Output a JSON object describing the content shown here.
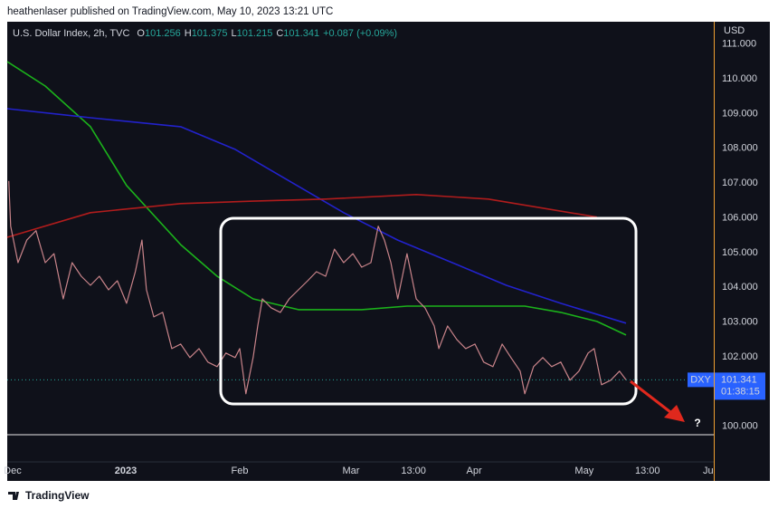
{
  "header": "heathenlaser published on TradingView.com, May 10, 2023 13:21 UTC",
  "footer": "TradingView",
  "chart_data": {
    "type": "line",
    "title": "U.S. Dollar Index, 2h, TVC",
    "ohlc": [
      {
        "label": "O",
        "value": "101.256"
      },
      {
        "label": "H",
        "value": "101.375"
      },
      {
        "label": "L",
        "value": "101.215"
      },
      {
        "label": "C",
        "value": "101.341"
      }
    ],
    "change": "+0.087 (+0.09%)",
    "y_label": "USD",
    "symbol": "DXY",
    "last_price": 101.341,
    "countdown": "01:38:15",
    "annotation_text": "?",
    "grid": false,
    "xlim": [
      -0.9,
      183.5
    ],
    "xticks": [
      {
        "value": 0.5,
        "label": "Dec"
      },
      {
        "value": 30,
        "label": "2023"
      },
      {
        "value": 59.7,
        "label": "Feb"
      },
      {
        "value": 88.7,
        "label": "Mar"
      },
      {
        "value": 105,
        "label": "13:00"
      },
      {
        "value": 120.8,
        "label": "Apr"
      },
      {
        "value": 149.5,
        "label": "May"
      },
      {
        "value": 166,
        "label": "13:00"
      },
      {
        "value": 181.8,
        "label": "Ju"
      }
    ],
    "ylim": [
      98.98,
      111.64
    ],
    "yticks": [
      {
        "value": 100,
        "label": "100.000"
      },
      {
        "value": 101,
        "label": "101.000"
      },
      {
        "value": 102,
        "label": "102.000"
      },
      {
        "value": 103,
        "label": "103.000"
      },
      {
        "value": 104,
        "label": "104.000"
      },
      {
        "value": 105,
        "label": "105.000"
      },
      {
        "value": 106,
        "label": "106.000"
      },
      {
        "value": 107,
        "label": "107.000"
      },
      {
        "value": 108,
        "label": "108.000"
      },
      {
        "value": 109,
        "label": "109.000"
      },
      {
        "value": 110,
        "label": "110.000"
      },
      {
        "value": 111,
        "label": "111.000"
      }
    ],
    "series": [
      {
        "color": "#c9848a",
        "width": 1.2,
        "x": [
          -0.5,
          0,
          1.9,
          4.2,
          6.6,
          9.0,
          11.3,
          13.7,
          16.0,
          18.4,
          20.8,
          23.1,
          25.5,
          27.8,
          30.2,
          32.5,
          34.2,
          35.4,
          37.3,
          39.6,
          42.0,
          44.3,
          46.7,
          49.1,
          51.4,
          53.8,
          56.1,
          58.5,
          59.7,
          61.3,
          63.2,
          64.4,
          65.6,
          67.9,
          70.3,
          72.6,
          75.0,
          77.4,
          79.7,
          82.1,
          84.4,
          86.8,
          89.2,
          91.5,
          93.9,
          95.8,
          97.4,
          99.1,
          100.9,
          103.3,
          105.7,
          108.0,
          110.4,
          111.6,
          113.9,
          116.3,
          118.6,
          121.0,
          123.3,
          125.7,
          128.1,
          130.4,
          132.8,
          134.0,
          136.3,
          138.7,
          141.0,
          143.4,
          145.8,
          148.1,
          150.5,
          152.1,
          154.0,
          156.4,
          158.7,
          160.4
        ],
        "values": [
          107.06,
          105.76,
          104.71,
          105.36,
          105.63,
          104.71,
          104.97,
          103.67,
          104.71,
          104.32,
          104.06,
          104.32,
          103.93,
          104.19,
          103.54,
          104.45,
          105.36,
          103.93,
          103.15,
          103.28,
          102.24,
          102.37,
          101.98,
          102.24,
          101.85,
          101.72,
          102.11,
          101.98,
          102.24,
          100.94,
          101.98,
          102.89,
          103.67,
          103.41,
          103.28,
          103.67,
          103.93,
          104.19,
          104.45,
          104.32,
          105.1,
          104.71,
          104.97,
          104.58,
          104.71,
          105.76,
          105.36,
          104.71,
          103.67,
          104.97,
          103.67,
          103.41,
          102.89,
          102.24,
          102.89,
          102.5,
          102.24,
          102.37,
          101.85,
          101.72,
          102.37,
          101.98,
          101.59,
          100.94,
          101.72,
          101.98,
          101.72,
          101.85,
          101.33,
          101.59,
          102.11,
          102.24,
          101.2,
          101.33,
          101.59,
          101.34
        ]
      },
      {
        "color": "#1bb21b",
        "width": 1.6,
        "x": [
          -0.9,
          9.0,
          20.8,
          30.2,
          44.3,
          53.8,
          63.2,
          75.0,
          91.5,
          103.3,
          119.8,
          134.0,
          143.4,
          152.8,
          160.4
        ],
        "values": [
          110.49,
          109.79,
          108.62,
          106.93,
          105.23,
          104.32,
          103.67,
          103.36,
          103.36,
          103.46,
          103.46,
          103.46,
          103.28,
          103.02,
          102.63
        ]
      },
      {
        "color": "#2222cc",
        "width": 1.6,
        "x": [
          -0.9,
          20.8,
          44.3,
          58.5,
          72.6,
          86.8,
          100.9,
          115.1,
          129.2,
          143.4,
          160.4
        ],
        "values": [
          109.14,
          108.88,
          108.62,
          107.97,
          107.06,
          106.15,
          105.36,
          104.71,
          104.06,
          103.54,
          102.97
        ]
      },
      {
        "color": "#b01c1c",
        "width": 1.6,
        "x": [
          -0.9,
          20.8,
          44.3,
          63.2,
          82.1,
          105.7,
          124.5,
          138.7,
          152.8
        ],
        "values": [
          105.44,
          106.15,
          106.41,
          106.48,
          106.54,
          106.67,
          106.54,
          106.28,
          106.02
        ]
      }
    ]
  }
}
